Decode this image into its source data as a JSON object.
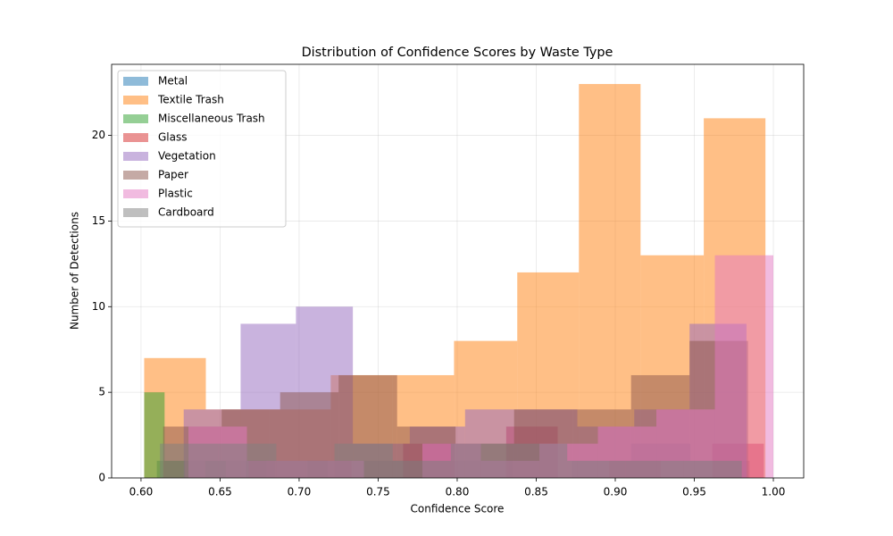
{
  "chart_data": {
    "type": "histogram",
    "title": "Distribution of Confidence Scores by Waste Type",
    "x_label": "Confidence Score",
    "y_label": "Number of Detections",
    "xlim": [
      0.5814,
      1.0192
    ],
    "ylim": [
      0,
      24.15
    ],
    "xticks": [
      {
        "value": 0.6,
        "label": "0.60"
      },
      {
        "value": 0.65,
        "label": "0.65"
      },
      {
        "value": 0.7,
        "label": "0.70"
      },
      {
        "value": 0.75,
        "label": "0.75"
      },
      {
        "value": 0.8,
        "label": "0.80"
      },
      {
        "value": 0.85,
        "label": "0.85"
      },
      {
        "value": 0.9,
        "label": "0.90"
      },
      {
        "value": 0.95,
        "label": "0.95"
      },
      {
        "value": 1.0,
        "label": "1.00"
      }
    ],
    "yticks": [
      0,
      5,
      10,
      15,
      20
    ],
    "grid": true,
    "legend": "upper left",
    "opacity": 0.5,
    "series": [
      {
        "name": "Metal",
        "color": "#1f77b4",
        "bins": [
          0.61,
          0.6475,
          0.685,
          0.7225,
          0.76,
          0.7975,
          0.835,
          0.8725,
          0.91,
          0.9475,
          0.985
        ],
        "values": [
          1,
          1,
          0,
          1,
          1,
          1,
          0,
          1,
          2,
          1
        ]
      },
      {
        "name": "Textile Trash",
        "color": "#ff7f0e",
        "bins": [
          0.602,
          0.641,
          0.681,
          0.72,
          0.759,
          0.798,
          0.838,
          0.877,
          0.916,
          0.956,
          0.995
        ],
        "values": [
          7,
          4,
          4,
          6,
          6,
          8,
          12,
          23,
          13,
          21
        ]
      },
      {
        "name": "Miscellaneous Trash",
        "color": "#2ca02c",
        "bins": [
          0.602,
          0.6149,
          0.6278,
          0.6407,
          0.6536,
          0.6665,
          0.6794,
          0.6923,
          0.7052,
          0.7181,
          0.731
        ],
        "values": [
          5,
          1,
          0,
          1,
          0,
          1,
          0,
          0,
          1,
          0
        ]
      },
      {
        "name": "Glass",
        "color": "#d62728",
        "bins": [
          0.668,
          0.7006,
          0.7332,
          0.7658,
          0.7984,
          0.831,
          0.8636,
          0.8962,
          0.9288,
          0.9614,
          0.994
        ],
        "values": [
          1,
          1,
          0,
          2,
          0,
          3,
          0,
          1,
          0,
          2
        ]
      },
      {
        "name": "Vegetation",
        "color": "#9467bd",
        "bins": [
          0.627,
          0.663,
          0.698,
          0.734,
          0.77,
          0.805,
          0.841,
          0.876,
          0.912,
          0.947,
          0.983
        ],
        "values": [
          4,
          9,
          10,
          2,
          3,
          4,
          4,
          3,
          4,
          9
        ]
      },
      {
        "name": "Paper",
        "color": "#8c564b",
        "bins": [
          0.614,
          0.651,
          0.688,
          0.725,
          0.762,
          0.799,
          0.836,
          0.873,
          0.91,
          0.947,
          0.984
        ],
        "values": [
          3,
          4,
          5,
          6,
          3,
          2,
          4,
          4,
          6,
          8
        ]
      },
      {
        "name": "Plastic",
        "color": "#e377c2",
        "bins": [
          0.63,
          0.667,
          0.704,
          0.741,
          0.778,
          0.815,
          0.852,
          0.889,
          0.926,
          0.963,
          1.0
        ],
        "values": [
          3,
          1,
          1,
          0,
          2,
          1,
          2,
          3,
          4,
          13
        ]
      },
      {
        "name": "Cardboard",
        "color": "#7f7f7f",
        "bins": [
          0.612,
          0.6488,
          0.6856,
          0.7224,
          0.7592,
          0.796,
          0.8328,
          0.8696,
          0.9064,
          0.9432,
          0.98
        ],
        "values": [
          2,
          2,
          1,
          2,
          1,
          2,
          2,
          1,
          1,
          1
        ]
      }
    ]
  }
}
